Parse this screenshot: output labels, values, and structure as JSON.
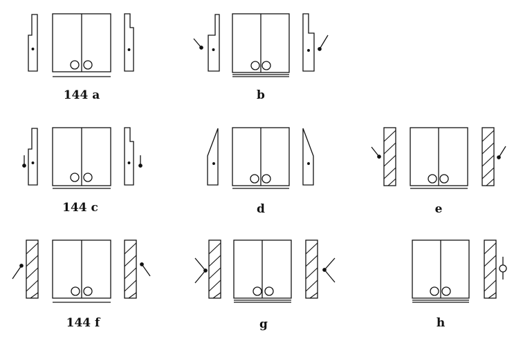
{
  "figure": {
    "panels": [
      {
        "id": "a",
        "label": "144 a"
      },
      {
        "id": "b",
        "label": "b"
      },
      {
        "id": "c",
        "label": "144 c"
      },
      {
        "id": "d",
        "label": "d"
      },
      {
        "id": "e",
        "label": "e"
      },
      {
        "id": "f",
        "label": "144  f"
      },
      {
        "id": "g",
        "label": "g"
      },
      {
        "id": "h",
        "label": "h"
      }
    ]
  }
}
